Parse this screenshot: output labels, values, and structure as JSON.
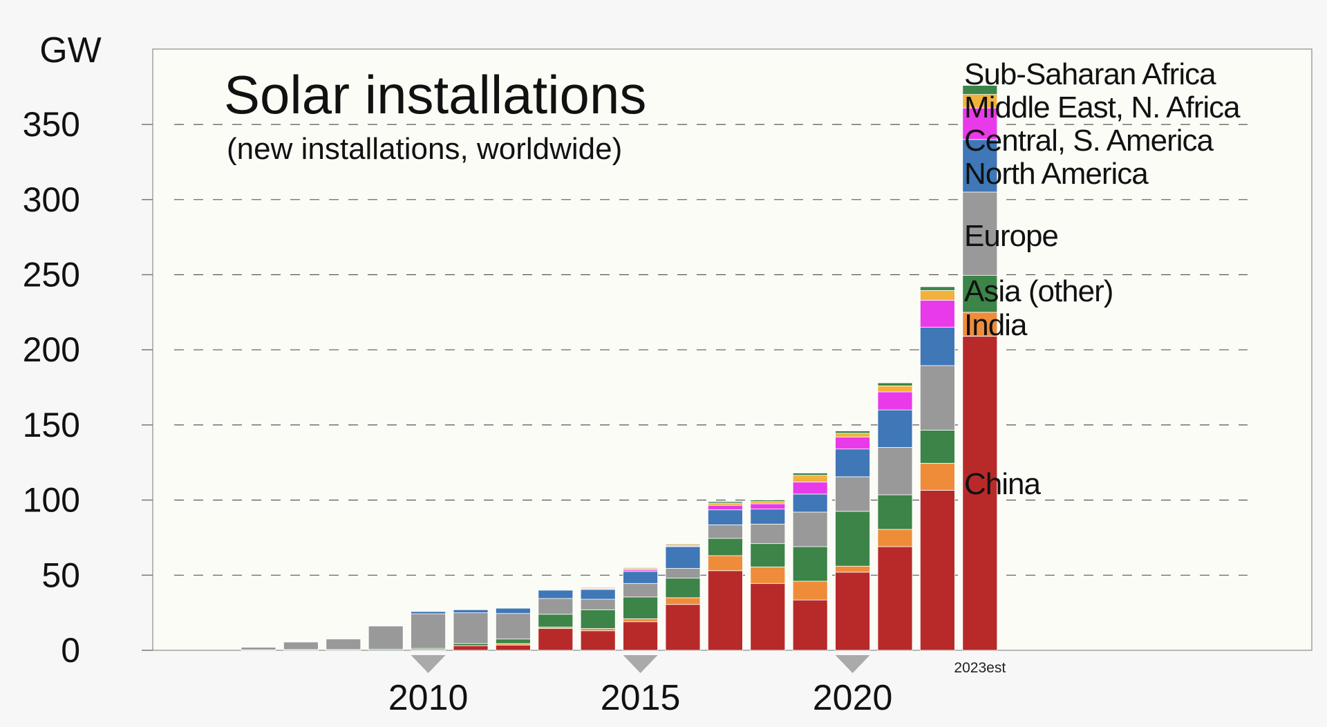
{
  "chart_data": {
    "type": "bar",
    "stacked": true,
    "title": "Solar installations",
    "subtitle": "(new installations, worldwide)",
    "ylabel": "GW",
    "ylim": [
      0,
      400
    ],
    "yticks": [
      0,
      50,
      100,
      150,
      200,
      250,
      300,
      350
    ],
    "grid": "horizontal dashed",
    "legend_placement": "right of last bar",
    "x": [
      2006,
      2007,
      2008,
      2009,
      2010,
      2011,
      2012,
      2013,
      2014,
      2015,
      2016,
      2017,
      2018,
      2019,
      2020,
      2021,
      2022,
      2023
    ],
    "x_tick_labels": [
      {
        "year": 2010,
        "label": "2010"
      },
      {
        "year": 2015,
        "label": "2015"
      },
      {
        "year": 2020,
        "label": "2020"
      }
    ],
    "estimate_label": {
      "year": 2023,
      "label": "2023est"
    },
    "series": [
      {
        "name": "China",
        "color": "#b82a2a",
        "values": [
          0,
          0,
          0,
          0,
          0.5,
          3,
          3.5,
          14.5,
          13,
          19,
          30.5,
          53,
          44.5,
          33.5,
          52,
          69,
          106.5,
          209
        ]
      },
      {
        "name": "India",
        "color": "#ef8c3a",
        "values": [
          0,
          0,
          0,
          0,
          0,
          0,
          1,
          1,
          1.5,
          2,
          4.5,
          10,
          11,
          12.5,
          4,
          11.5,
          18,
          16
        ]
      },
      {
        "name": "Asia (other)",
        "color": "#3c8448",
        "values": [
          0.3,
          0.5,
          0.5,
          0.7,
          0.8,
          1.5,
          3,
          8.5,
          12.5,
          14.5,
          13,
          11.5,
          15.5,
          23,
          36.5,
          23,
          22,
          24.5
        ]
      },
      {
        "name": "Europe",
        "color": "#999999",
        "values": [
          1.7,
          5,
          7,
          15.5,
          23,
          20.5,
          17,
          10.5,
          7,
          9,
          6.5,
          9,
          13,
          23,
          23,
          31.5,
          43,
          55.5
        ]
      },
      {
        "name": "North America",
        "color": "#3f77b7",
        "values": [
          0,
          0,
          0,
          0.3,
          1.5,
          2,
          3.5,
          5.5,
          6.5,
          8,
          14.5,
          10,
          10,
          12,
          18.5,
          25,
          25.5,
          35
        ]
      },
      {
        "name": "Central, S. America",
        "color": "#e93ae9",
        "values": [
          0,
          0,
          0,
          0,
          0,
          0,
          0,
          0,
          0.5,
          1,
          0.5,
          3,
          3.5,
          8,
          8,
          12,
          18,
          21
        ]
      },
      {
        "name": "Middle East, N. Africa",
        "color": "#f2b13a",
        "values": [
          0,
          0,
          0,
          0,
          0,
          0,
          0,
          0,
          0.5,
          1,
          1,
          1.5,
          1.5,
          4.5,
          2.5,
          4,
          6.5,
          9
        ]
      },
      {
        "name": "Sub-Saharan Africa",
        "color": "#3c8448",
        "values": [
          0,
          0,
          0,
          0,
          0,
          0,
          0,
          0,
          0.5,
          0.5,
          0.5,
          1,
          1,
          1.5,
          1.5,
          2,
          2.5,
          6
        ]
      }
    ]
  }
}
